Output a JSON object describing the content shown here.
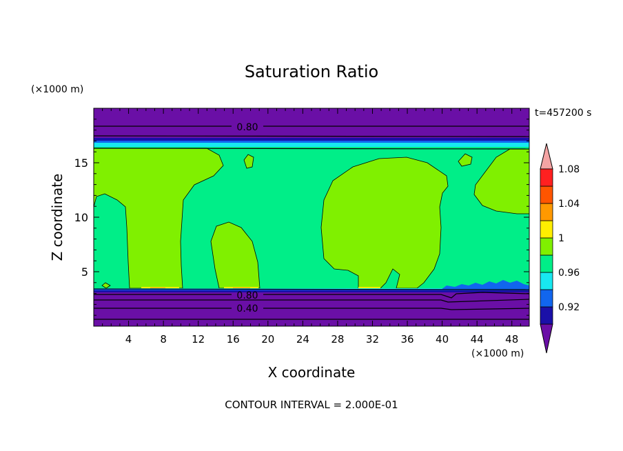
{
  "chart_data": {
    "type": "heatmap",
    "title": "Saturation Ratio",
    "xlabel": "X coordinate",
    "ylabel": "Z coordinate",
    "x_unit": "(×1000 m)",
    "y_unit": "(×1000 m)",
    "time_label": "t=457200 s",
    "footer": "CONTOUR INTERVAL = 2.000E-01",
    "xlim": [
      0,
      50
    ],
    "ylim": [
      0,
      20
    ],
    "xticks": [
      4,
      8,
      12,
      16,
      20,
      24,
      28,
      32,
      36,
      40,
      44,
      48
    ],
    "yticks": [
      5,
      10,
      15
    ],
    "contour_labels": [
      {
        "text": "0.80",
        "x": 17.5,
        "z": 18.3
      },
      {
        "text": "0.80",
        "x": 17.5,
        "z": 3.0
      },
      {
        "text": "0.40",
        "x": 17.5,
        "z": 1.8
      }
    ],
    "colorbar": {
      "levels": [
        0.92,
        0.96,
        1,
        1.04,
        1.08
      ],
      "tick_labels": [
        "0.92",
        "0.96",
        "1",
        "1.04",
        "1.08"
      ],
      "colors": [
        "#6a0fa6",
        "#1a10a8",
        "#1166ee",
        "#18e8f0",
        "#00ee88",
        "#80f000",
        "#ffee00",
        "#ff9900",
        "#ff5500",
        "#ff2020",
        "#f4a4a4"
      ]
    },
    "colors": {
      "dry": "#6a0fa6",
      "navy": "#1a10a8",
      "blue": "#1166ee",
      "cyan": "#18e8f0",
      "near_saturated": "#00ee88",
      "supersaturated": "#80f000",
      "yellow": "#ffee00",
      "orange": "#ff9900"
    }
  }
}
